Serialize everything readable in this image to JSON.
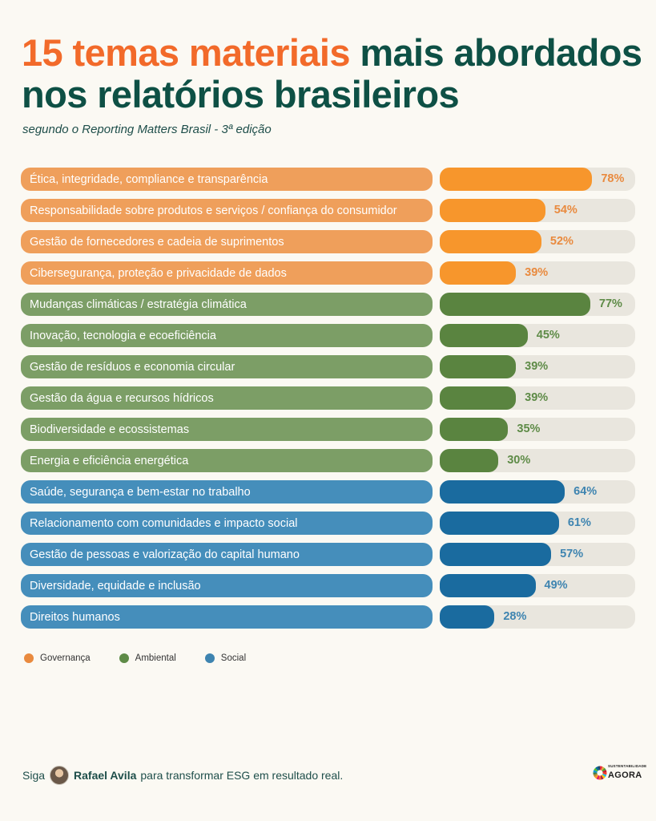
{
  "header": {
    "title_accent": "15 temas materiais",
    "title_rest": " mais abordados nos relatórios brasileiros",
    "subtitle": "segundo o Reporting Matters Brasil - 3ª edição"
  },
  "colors": {
    "Governança": {
      "label": "#EF9F5B",
      "fill": "#F7962C",
      "text": "#E98A3E"
    },
    "Ambiental": {
      "label": "#7C9E66",
      "fill": "#5A8440",
      "text": "#5E8B47"
    },
    "Social": {
      "label": "#458EBB",
      "fill": "#1A6B9F",
      "text": "#3E84B0"
    },
    "track": "#E9E6DE"
  },
  "chart_data": {
    "type": "bar",
    "orientation": "horizontal",
    "xlim": [
      0,
      100
    ],
    "categories": [
      "Ética, integridade, compliance e transparência",
      "Responsabilidade sobre produtos e serviços / confiança do consumidor",
      "Gestão de fornecedores e cadeia de suprimentos",
      "Cibersegurança, proteção e privacidade de dados",
      "Mudanças climáticas / estratégia climática",
      "Inovação, tecnologia e ecoeficiência",
      "Gestão de resíduos e economia circular",
      "Gestão da água e recursos hídricos",
      "Biodiversidade e ecossistemas",
      "Energia e eficiência energética",
      "Saúde, segurança e bem-estar no trabalho",
      "Relacionamento com comunidades e impacto social",
      "Gestão de pessoas e valorização do capital humano",
      "Diversidade, equidade e inclusão",
      "Direitos humanos"
    ],
    "values": [
      78,
      54,
      52,
      39,
      77,
      45,
      39,
      39,
      35,
      30,
      64,
      61,
      57,
      49,
      28
    ],
    "value_labels": [
      "78%",
      "54%",
      "52%",
      "39%",
      "77%",
      "45%",
      "39%",
      "39%",
      "35%",
      "30%",
      "64%",
      "61%",
      "57%",
      "49%",
      "28%"
    ],
    "groups": [
      "Governança",
      "Governança",
      "Governança",
      "Governança",
      "Ambiental",
      "Ambiental",
      "Ambiental",
      "Ambiental",
      "Ambiental",
      "Ambiental",
      "Social",
      "Social",
      "Social",
      "Social",
      "Social"
    ],
    "legend": [
      "Governança",
      "Ambiental",
      "Social"
    ],
    "legend_position": "bottom-left"
  },
  "footer": {
    "prefix": "Siga",
    "name": "Rafael Avila",
    "suffix": "para transformar ESG em resultado real."
  },
  "logo": {
    "line1": "SUSTENTABILIDADE",
    "line2": "AGORA"
  }
}
